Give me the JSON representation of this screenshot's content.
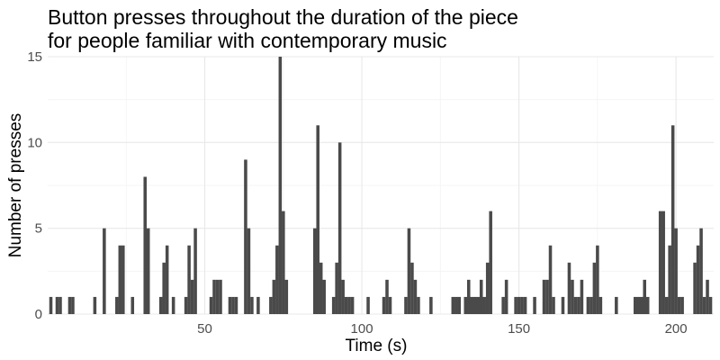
{
  "chart_data": {
    "type": "bar",
    "title": "Button presses throughout the duration of the piece",
    "subtitle": "for people familiar with contemporary music",
    "xlabel": "Time (s)",
    "ylabel": "Number of presses",
    "xlim": [
      0,
      212
    ],
    "ylim": [
      0,
      15
    ],
    "x_ticks": [
      50,
      100,
      150,
      200
    ],
    "y_ticks": [
      0,
      5,
      10,
      15
    ],
    "grid": true,
    "bar_color": "#4a4a4a",
    "x": [
      1,
      3,
      4,
      7,
      8,
      15,
      18,
      22,
      23,
      24,
      27,
      31,
      32,
      36,
      37,
      38,
      40,
      44,
      45,
      46,
      47,
      52,
      53,
      54,
      55,
      58,
      59,
      60,
      63,
      64,
      65,
      67,
      71,
      72,
      73,
      74,
      75,
      76,
      85,
      86,
      87,
      88,
      91,
      92,
      93,
      94,
      95,
      96,
      97,
      102,
      107,
      108,
      109,
      114,
      115,
      116,
      117,
      118,
      122,
      129,
      130,
      131,
      133,
      134,
      135,
      136,
      137,
      138,
      139,
      140,
      141,
      145,
      146,
      149,
      150,
      151,
      152,
      155,
      158,
      159,
      160,
      161,
      164,
      166,
      167,
      168,
      169,
      170,
      172,
      173,
      174,
      175,
      176,
      181,
      187,
      188,
      189,
      190,
      191,
      195,
      196,
      197,
      198,
      199,
      200,
      201,
      202,
      206,
      207,
      208,
      209,
      210,
      211
    ],
    "values": [
      1,
      1,
      1,
      1,
      1,
      1,
      5,
      1,
      4,
      4,
      1,
      8,
      5,
      1,
      3,
      4,
      1,
      1,
      4,
      2,
      5,
      1,
      2,
      2,
      2,
      1,
      1,
      1,
      9,
      5,
      1,
      1,
      1,
      2,
      4,
      15,
      6,
      2,
      5,
      11,
      3,
      2,
      1,
      3,
      10,
      2,
      1,
      1,
      1,
      1,
      1,
      2,
      1,
      1,
      5,
      3,
      2,
      1,
      1,
      1,
      1,
      1,
      1,
      2,
      1,
      1,
      1,
      2,
      1,
      3,
      6,
      1,
      2,
      1,
      1,
      1,
      1,
      1,
      2,
      2,
      4,
      1,
      1,
      3,
      2,
      1,
      1,
      2,
      1,
      1,
      3,
      4,
      1,
      1,
      1,
      1,
      1,
      2,
      1,
      6,
      6,
      1,
      4,
      11,
      5,
      1,
      1,
      3,
      4,
      5,
      1,
      2,
      1
    ]
  }
}
